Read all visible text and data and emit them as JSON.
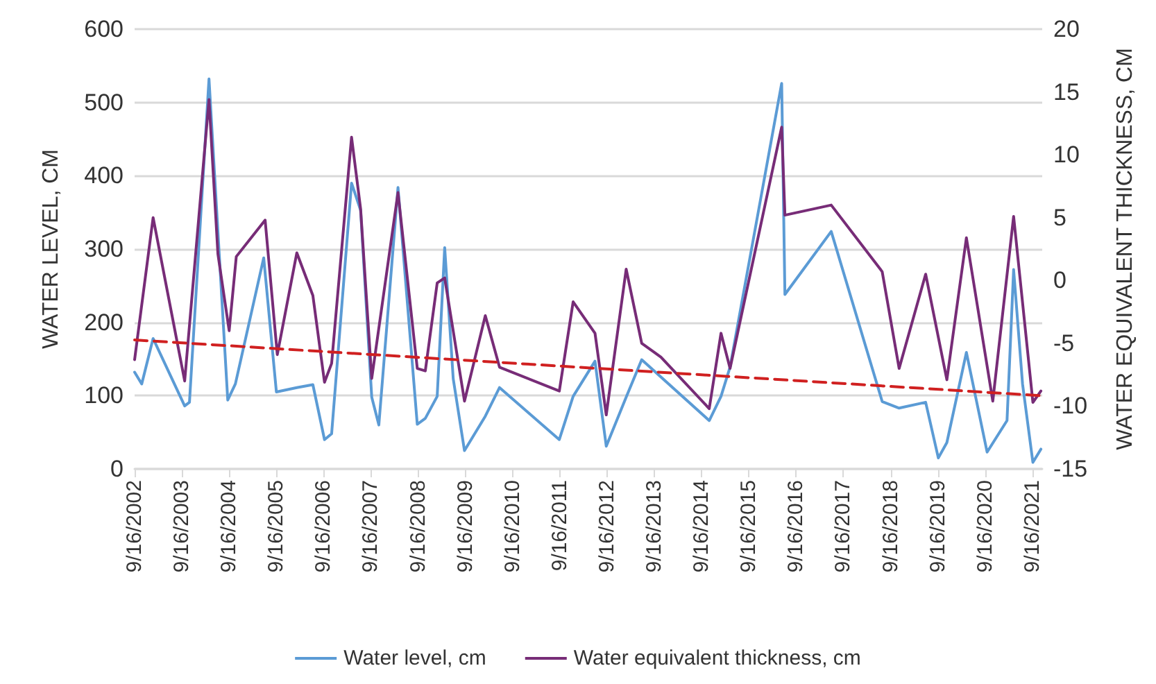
{
  "chart_data": {
    "type": "line",
    "ylabel": "WATER LEVEL, CM",
    "y2label": "WATER EQUIVALENT THICKNESS, CM",
    "xlim": [
      "2002-09-16",
      "2021-12-01"
    ],
    "xticks": [
      {
        "value": "2002-09-16",
        "label": "9/16/2002"
      },
      {
        "value": "2003-09-16",
        "label": "9/16/2003"
      },
      {
        "value": "2004-09-16",
        "label": "9/16/2004"
      },
      {
        "value": "2005-09-16",
        "label": "9/16/2005"
      },
      {
        "value": "2006-09-16",
        "label": "9/16/2006"
      },
      {
        "value": "2007-09-16",
        "label": "9/16/2007"
      },
      {
        "value": "2008-09-16",
        "label": "9/16/2008"
      },
      {
        "value": "2009-09-16",
        "label": "9/16/2009"
      },
      {
        "value": "2010-09-16",
        "label": "9/16/2010"
      },
      {
        "value": "2011-09-16",
        "label": "9/16/2011"
      },
      {
        "value": "2012-09-16",
        "label": "9/16/2012"
      },
      {
        "value": "2013-09-16",
        "label": "9/16/2013"
      },
      {
        "value": "2014-09-16",
        "label": "9/16/2014"
      },
      {
        "value": "2015-09-16",
        "label": "9/16/2015"
      },
      {
        "value": "2016-09-16",
        "label": "9/16/2016"
      },
      {
        "value": "2017-09-16",
        "label": "9/16/2017"
      },
      {
        "value": "2018-09-16",
        "label": "9/16/2018"
      },
      {
        "value": "2019-09-16",
        "label": "9/16/2019"
      },
      {
        "value": "2020-09-16",
        "label": "9/16/2020"
      },
      {
        "value": "2021-09-16",
        "label": "9/16/2021"
      }
    ],
    "ylim": [
      0,
      600
    ],
    "yticks": [
      0,
      100,
      200,
      300,
      400,
      500,
      600
    ],
    "y2lim": [
      -15,
      20
    ],
    "y2ticks": [
      -15,
      -10,
      -5,
      0,
      5,
      10,
      15,
      20
    ],
    "grid": "y",
    "legend": "bottom",
    "marker": "none",
    "series": [
      {
        "name": "Water level, cm",
        "color": "#5b9bd5",
        "x": [
          "2002-09-16",
          "2002-11-10",
          "2003-02-06",
          "2003-10-08",
          "2003-11-14",
          "2004-04-13",
          "2004-09-05",
          "2004-11-03",
          "2005-06-10",
          "2005-09-16",
          "2006-02-21",
          "2006-06-25",
          "2006-09-23",
          "2006-11-17",
          "2007-04-20",
          "2007-06-29",
          "2007-09-23",
          "2007-11-17",
          "2008-04-13",
          "2008-09-09",
          "2008-11-10",
          "2009-02-10",
          "2009-04-09",
          "2009-06-14",
          "2009-09-09",
          "2010-02-17",
          "2010-06-07",
          "2011-09-12",
          "2011-12-28",
          "2012-06-14",
          "2012-09-09",
          "2013-02-10",
          "2013-06-10",
          "2014-11-14",
          "2015-02-13",
          "2015-04-24",
          "2016-05-27",
          "2016-06-21",
          "2017-06-14",
          "2018-07-13",
          "2018-11-21",
          "2019-06-14",
          "2019-09-20",
          "2019-11-25",
          "2020-04-24",
          "2020-10-01",
          "2021-03-04",
          "2021-04-24",
          "2021-07-02",
          "2021-09-20",
          "2021-11-21"
        ],
        "values": [
          132,
          116,
          178,
          86,
          91,
          532,
          94,
          116,
          288,
          105,
          111,
          115,
          40,
          48,
          390,
          353,
          98,
          60,
          384,
          61,
          69,
          99,
          302,
          123,
          25,
          72,
          111,
          40,
          99,
          147,
          31,
          98,
          149,
          66,
          99,
          139,
          526,
          238,
          324,
          92,
          83,
          91,
          15,
          36,
          159,
          23,
          66,
          272,
          116,
          9,
          27
        ]
      },
      {
        "name": "Water equivalent thickness, cm",
        "color": "#772c77",
        "axis": "y2",
        "x": [
          "2002-09-16",
          "2003-02-06",
          "2003-10-08",
          "2004-04-13",
          "2004-06-21",
          "2004-09-16",
          "2004-11-10",
          "2005-06-21",
          "2005-09-23",
          "2006-02-21",
          "2006-06-25",
          "2006-09-23",
          "2006-11-17",
          "2007-04-20",
          "2007-06-29",
          "2007-09-23",
          "2008-04-13",
          "2008-09-09",
          "2008-11-10",
          "2009-02-10",
          "2009-04-09",
          "2009-09-09",
          "2010-02-17",
          "2010-06-07",
          "2011-09-12",
          "2011-12-28",
          "2012-06-14",
          "2012-09-09",
          "2013-02-10",
          "2013-06-10",
          "2013-11-06",
          "2014-11-14",
          "2015-02-13",
          "2015-04-24",
          "2016-05-27",
          "2016-06-21",
          "2017-06-14",
          "2018-07-13",
          "2018-11-21",
          "2019-06-14",
          "2019-11-25",
          "2020-04-24",
          "2020-11-14",
          "2021-04-24",
          "2021-09-20",
          "2021-11-21"
        ],
        "values": [
          -6.3,
          5.0,
          -8.0,
          14.4,
          2.1,
          -4.0,
          1.9,
          4.8,
          -5.9,
          2.2,
          -1.2,
          -8.1,
          -6.6,
          11.4,
          5.7,
          -7.8,
          7.0,
          -7.0,
          -7.2,
          -0.2,
          0.2,
          -9.6,
          -2.8,
          -6.9,
          -8.8,
          -1.7,
          -4.2,
          -10.7,
          0.9,
          -5.0,
          -6.1,
          -10.2,
          -4.2,
          -7.0,
          12.2,
          5.2,
          6.0,
          0.7,
          -7.0,
          0.5,
          -7.9,
          3.4,
          -9.6,
          5.1,
          -9.7,
          -8.8
        ]
      },
      {
        "type": "line",
        "color": "#d02020",
        "line_style": "dashed",
        "x": [
          "2002-09-16",
          "2021-11-21"
        ],
        "values": [
          176,
          100
        ]
      }
    ]
  }
}
